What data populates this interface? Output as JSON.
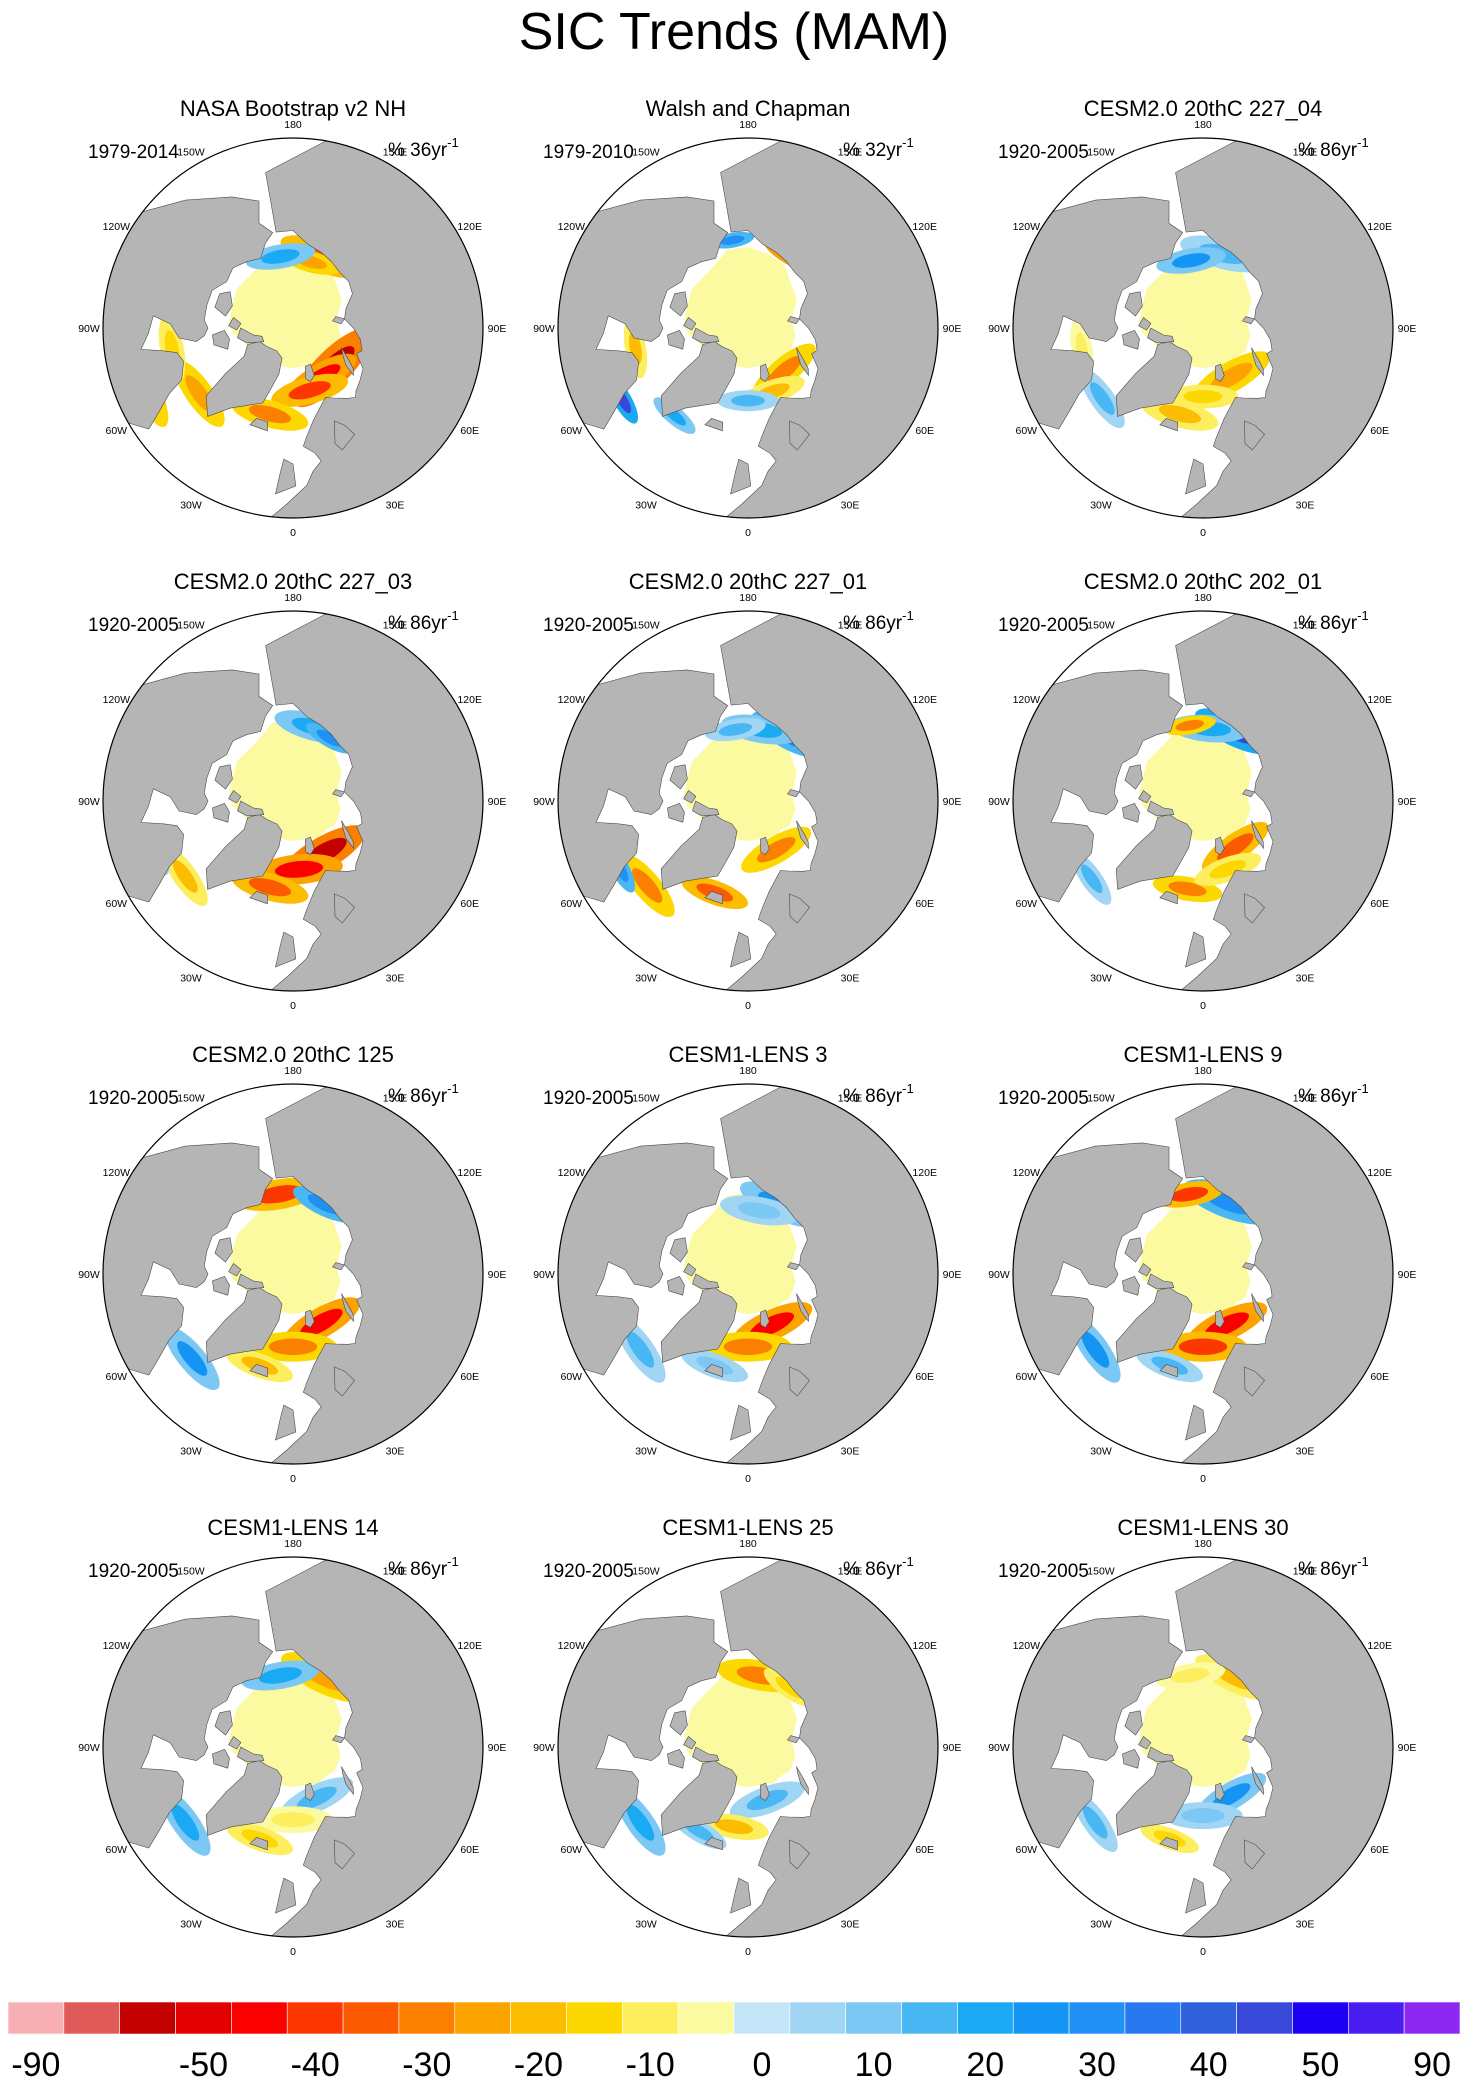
{
  "figure_title": "SIC Trends (MAM)",
  "legend_colors": [
    "#f8afb4",
    "#e15a5a",
    "#c30000",
    "#e30000",
    "#fc0000",
    "#fc3700",
    "#fc5a00",
    "#fc8000",
    "#fca300",
    "#fcbc00",
    "#fcd800",
    "#fcee5c",
    "#fcfaa0",
    "#c4e5f8",
    "#a0d5f4",
    "#7bc8f4",
    "#49b7f4",
    "#1aaaf4",
    "#1495f4",
    "#2090f4",
    "#2878f0",
    "#3060dc",
    "#3848d8",
    "#1e00f4",
    "#4a1ef0",
    "#8c28f0"
  ],
  "land_color": "#b5b5b5",
  "chart_data": {
    "type": "heatmap",
    "title": "SIC Trends (MAM)",
    "projection": "north-polar-stereographic",
    "longitude_labels": [
      "180",
      "150E",
      "120E",
      "90E",
      "60E",
      "30E",
      "0",
      "30W",
      "60W",
      "90W",
      "120W",
      "150W"
    ],
    "colorbar": {
      "placement": "bottom",
      "tick_labels": [
        "-90",
        "-50",
        "-40",
        "-30",
        "-20",
        "-10",
        "0",
        "10",
        "20",
        "30",
        "40",
        "50",
        "90"
      ],
      "n_colors": 26
    },
    "panels": [
      {
        "title": "NASA Bootstrap v2 NH",
        "period": "1979-2014",
        "unit_label": "% 36yr",
        "unit_exp": "-1",
        "features": [
          {
            "lon": 158,
            "lat": 71,
            "value": -35,
            "size": 1.0
          },
          {
            "lon": 165,
            "lat": 73,
            "value": -25,
            "size": 0.7
          },
          {
            "lon": -170,
            "lat": 72,
            "value": 20,
            "size": 0.8
          },
          {
            "lon": 45,
            "lat": 76,
            "value": -55,
            "size": 1.2
          },
          {
            "lon": 30,
            "lat": 76,
            "value": -45,
            "size": 0.9
          },
          {
            "lon": 15,
            "lat": 74,
            "value": -40,
            "size": 0.9
          },
          {
            "lon": -15,
            "lat": 68,
            "value": -30,
            "size": 0.9
          },
          {
            "lon": -55,
            "lat": 62,
            "value": -25,
            "size": 0.9
          },
          {
            "lon": -65,
            "lat": 52,
            "value": -25,
            "size": 0.8
          },
          {
            "lon": -80,
            "lat": 60,
            "value": -15,
            "size": 0.8
          },
          {
            "lon": 20,
            "lat": 62,
            "value": -40,
            "size": 0.5
          }
        ]
      },
      {
        "title": "Walsh and Chapman",
        "period": "1979-2010",
        "unit_label": "% 32yr",
        "unit_exp": "-1",
        "features": [
          {
            "lon": 150,
            "lat": 69,
            "value": -45,
            "size": 0.7
          },
          {
            "lon": -170,
            "lat": 68,
            "value": 30,
            "size": 0.5
          },
          {
            "lon": 40,
            "lat": 76,
            "value": -30,
            "size": 0.9
          },
          {
            "lon": 20,
            "lat": 73,
            "value": -20,
            "size": 0.8
          },
          {
            "lon": -60,
            "lat": 55,
            "value": 45,
            "size": 0.6
          },
          {
            "lon": -40,
            "lat": 62,
            "value": 20,
            "size": 0.6
          },
          {
            "lon": -80,
            "lat": 62,
            "value": -20,
            "size": 0.7
          },
          {
            "lon": 0,
            "lat": 72,
            "value": 15,
            "size": 0.7
          }
        ]
      },
      {
        "title": "CESM2.0 20thC 227_04",
        "period": "1920-2005",
        "unit_label": "% 86yr",
        "unit_exp": "-1",
        "features": [
          {
            "lon": 165,
            "lat": 71,
            "value": 15,
            "size": 1.0
          },
          {
            "lon": -170,
            "lat": 73,
            "value": 25,
            "size": 0.8
          },
          {
            "lon": 30,
            "lat": 76,
            "value": -25,
            "size": 1.0
          },
          {
            "lon": -15,
            "lat": 68,
            "value": -20,
            "size": 0.9
          },
          {
            "lon": -55,
            "lat": 60,
            "value": 15,
            "size": 0.8
          },
          {
            "lon": 0,
            "lat": 73,
            "value": -15,
            "size": 0.8
          },
          {
            "lon": -80,
            "lat": 60,
            "value": -10,
            "size": 0.7
          }
        ]
      },
      {
        "title": "CESM2.0 20thC 227_03",
        "period": "1920-2005",
        "unit_label": "% 86yr",
        "unit_exp": "-1",
        "features": [
          {
            "lon": 165,
            "lat": 71,
            "value": 20,
            "size": 0.9
          },
          {
            "lon": 150,
            "lat": 72,
            "value": 30,
            "size": 0.6
          },
          {
            "lon": 30,
            "lat": 75,
            "value": -55,
            "size": 1.1
          },
          {
            "lon": 5,
            "lat": 73,
            "value": -45,
            "size": 1.0
          },
          {
            "lon": -15,
            "lat": 68,
            "value": -35,
            "size": 0.9
          },
          {
            "lon": -55,
            "lat": 58,
            "value": -20,
            "size": 0.8
          },
          {
            "lon": -70,
            "lat": 55,
            "value": 15,
            "size": 0.6
          }
        ]
      },
      {
        "title": "CESM2.0 20thC 227_01",
        "period": "1920-2005",
        "unit_label": "% 86yr",
        "unit_exp": "-1",
        "features": [
          {
            "lon": 150,
            "lat": 71,
            "value": 35,
            "size": 0.9
          },
          {
            "lon": 170,
            "lat": 72,
            "value": 20,
            "size": 0.9
          },
          {
            "lon": -170,
            "lat": 72,
            "value": 15,
            "size": 0.7
          },
          {
            "lon": 30,
            "lat": 76,
            "value": -30,
            "size": 0.9
          },
          {
            "lon": -20,
            "lat": 66,
            "value": -35,
            "size": 0.8
          },
          {
            "lon": -50,
            "lat": 58,
            "value": -30,
            "size": 0.9
          },
          {
            "lon": -62,
            "lat": 55,
            "value": 30,
            "size": 0.6
          }
        ]
      },
      {
        "title": "CESM2.0 20thC 202_01",
        "period": "1920-2005",
        "unit_label": "% 86yr",
        "unit_exp": "-1",
        "features": [
          {
            "lon": 155,
            "lat": 71,
            "value": 45,
            "size": 1.0
          },
          {
            "lon": 175,
            "lat": 72,
            "value": 20,
            "size": 0.9
          },
          {
            "lon": -170,
            "lat": 71,
            "value": -30,
            "size": 0.6
          },
          {
            "lon": 35,
            "lat": 76,
            "value": -35,
            "size": 0.9
          },
          {
            "lon": -10,
            "lat": 68,
            "value": -30,
            "size": 0.8
          },
          {
            "lon": -55,
            "lat": 57,
            "value": 15,
            "size": 0.7
          },
          {
            "lon": 20,
            "lat": 72,
            "value": -15,
            "size": 0.8
          }
        ]
      },
      {
        "title": "CESM2.0 20thC 125",
        "period": "1920-2005",
        "unit_label": "% 86yr",
        "unit_exp": "-1",
        "features": [
          {
            "lon": -170,
            "lat": 70,
            "value": -40,
            "size": 1.0
          },
          {
            "lon": 155,
            "lat": 71,
            "value": 30,
            "size": 0.8
          },
          {
            "lon": 30,
            "lat": 76,
            "value": -45,
            "size": 1.0
          },
          {
            "lon": 0,
            "lat": 72,
            "value": -30,
            "size": 1.0
          },
          {
            "lon": -50,
            "lat": 58,
            "value": 25,
            "size": 0.9
          },
          {
            "lon": -20,
            "lat": 66,
            "value": -20,
            "size": 0.8
          }
        ]
      },
      {
        "title": "CESM1-LENS 3",
        "period": "1920-2005",
        "unit_label": "% 86yr",
        "unit_exp": "-1",
        "features": [
          {
            "lon": 155,
            "lat": 71,
            "value": 25,
            "size": 1.0
          },
          {
            "lon": 170,
            "lat": 74,
            "value": 10,
            "size": 0.9
          },
          {
            "lon": 25,
            "lat": 76,
            "value": -45,
            "size": 1.0
          },
          {
            "lon": 0,
            "lat": 72,
            "value": -30,
            "size": 1.0
          },
          {
            "lon": -55,
            "lat": 58,
            "value": 15,
            "size": 0.9
          },
          {
            "lon": -20,
            "lat": 66,
            "value": 10,
            "size": 0.8
          }
        ]
      },
      {
        "title": "CESM1-LENS 9",
        "period": "1920-2005",
        "unit_label": "% 86yr",
        "unit_exp": "-1",
        "features": [
          {
            "lon": 160,
            "lat": 71,
            "value": 30,
            "size": 1.1
          },
          {
            "lon": -170,
            "lat": 70,
            "value": -40,
            "size": 0.8
          },
          {
            "lon": 25,
            "lat": 76,
            "value": -45,
            "size": 1.0
          },
          {
            "lon": 0,
            "lat": 72,
            "value": -40,
            "size": 1.0
          },
          {
            "lon": -55,
            "lat": 58,
            "value": 25,
            "size": 0.9
          },
          {
            "lon": -20,
            "lat": 66,
            "value": 15,
            "size": 0.8
          }
        ]
      },
      {
        "title": "CESM1-LENS 14",
        "period": "1920-2005",
        "unit_label": "% 86yr",
        "unit_exp": "-1",
        "features": [
          {
            "lon": 155,
            "lat": 71,
            "value": -25,
            "size": 1.1
          },
          {
            "lon": -170,
            "lat": 72,
            "value": 20,
            "size": 0.9
          },
          {
            "lon": 25,
            "lat": 76,
            "value": 15,
            "size": 0.9
          },
          {
            "lon": 0,
            "lat": 72,
            "value": -10,
            "size": 0.9
          },
          {
            "lon": -55,
            "lat": 58,
            "value": 20,
            "size": 0.9
          },
          {
            "lon": -20,
            "lat": 66,
            "value": -15,
            "size": 0.8
          }
        ]
      },
      {
        "title": "CESM1-LENS 25",
        "period": "1920-2005",
        "unit_label": "% 86yr",
        "unit_exp": "-1",
        "features": [
          {
            "lon": 170,
            "lat": 72,
            "value": -30,
            "size": 1.0
          },
          {
            "lon": 145,
            "lat": 72,
            "value": -15,
            "size": 0.7
          },
          {
            "lon": 20,
            "lat": 76,
            "value": 15,
            "size": 0.9
          },
          {
            "lon": -10,
            "lat": 70,
            "value": -20,
            "size": 0.8
          },
          {
            "lon": -55,
            "lat": 58,
            "value": 20,
            "size": 0.9
          },
          {
            "lon": -30,
            "lat": 66,
            "value": 15,
            "size": 0.7
          }
        ]
      },
      {
        "title": "CESM1-LENS 30",
        "period": "1920-2005",
        "unit_label": "% 86yr",
        "unit_exp": "-1",
        "features": [
          {
            "lon": 155,
            "lat": 71,
            "value": -20,
            "size": 1.0
          },
          {
            "lon": -170,
            "lat": 72,
            "value": -10,
            "size": 0.8
          },
          {
            "lon": 30,
            "lat": 76,
            "value": 25,
            "size": 0.9
          },
          {
            "lon": 0,
            "lat": 73,
            "value": 10,
            "size": 0.9
          },
          {
            "lon": -55,
            "lat": 58,
            "value": 15,
            "size": 0.8
          },
          {
            "lon": -20,
            "lat": 66,
            "value": -15,
            "size": 0.7
          }
        ]
      }
    ]
  }
}
